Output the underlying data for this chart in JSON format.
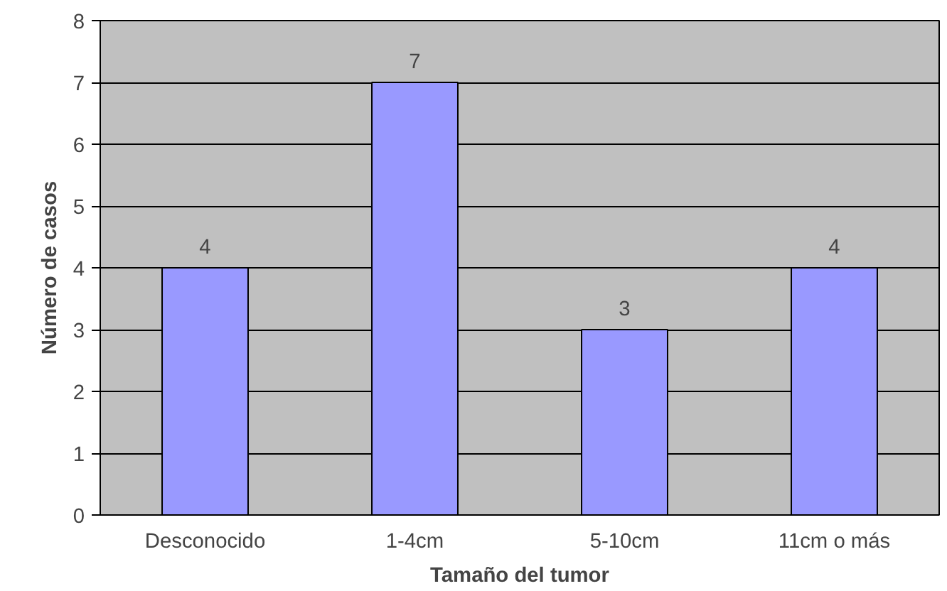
{
  "chart_data": {
    "type": "bar",
    "xlabel": "Tamaño del tumor",
    "ylabel": "Número de casos",
    "categories": [
      "Desconocido",
      "1-4cm",
      "5-10cm",
      "11cm o más"
    ],
    "values": [
      4,
      7,
      3,
      4
    ],
    "color": "#9999ff",
    "ylim": [
      0,
      8
    ],
    "yticks": [
      0,
      1,
      2,
      3,
      4,
      5,
      6,
      7,
      8
    ],
    "grid": "y",
    "data_labels": true
  }
}
